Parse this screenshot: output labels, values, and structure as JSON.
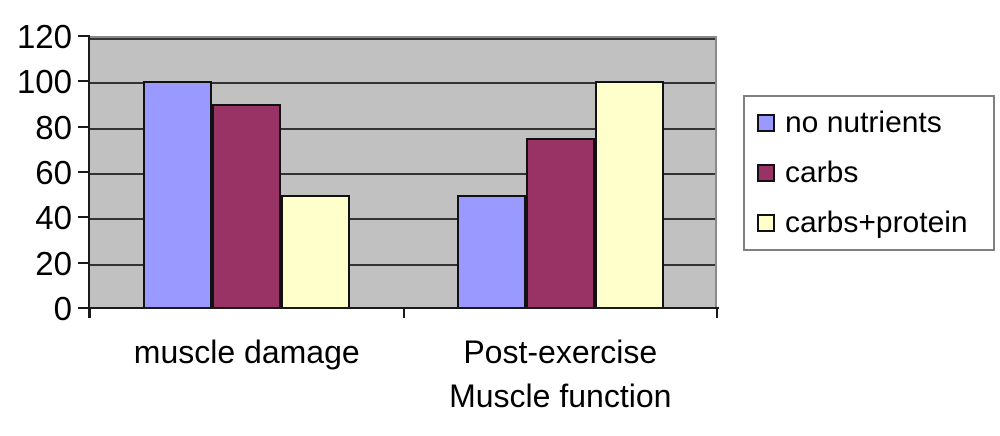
{
  "chart_data": {
    "type": "bar",
    "title": "",
    "xlabel": "",
    "ylabel": "",
    "ylim": [
      0,
      120
    ],
    "y_ticks": [
      0,
      20,
      40,
      60,
      80,
      100,
      120
    ],
    "grid": true,
    "legend_position": "right",
    "plot_background": "#C1C1C1",
    "gridline_color": "#333333",
    "categories": [
      {
        "lines": [
          "muscle damage"
        ]
      },
      {
        "lines": [
          "Post-exercise",
          "Muscle function"
        ]
      }
    ],
    "series": [
      {
        "name": "no nutrients",
        "color": "#9999FF",
        "values": [
          100,
          50
        ]
      },
      {
        "name": "carbs",
        "color": "#993366",
        "values": [
          90,
          75
        ]
      },
      {
        "name": "carbs+protein",
        "color": "#FFFFCC",
        "values": [
          50,
          100
        ]
      }
    ]
  }
}
